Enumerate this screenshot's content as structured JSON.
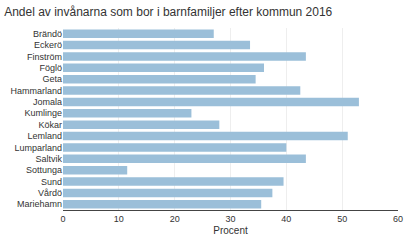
{
  "chart_data": {
    "type": "bar",
    "orientation": "horizontal",
    "title": "Andel av invånarna som bor i barnfamiljer efter kommun 2016",
    "xlabel": "Procent",
    "categories": [
      "Brändö",
      "Eckerö",
      "Finström",
      "Föglö",
      "Geta",
      "Hammarland",
      "Jomala",
      "Kumlinge",
      "Kökar",
      "Lemland",
      "Lumparland",
      "Saltvik",
      "Sottunga",
      "Sund",
      "Vårdö",
      "Mariehamn"
    ],
    "values": [
      27,
      33.5,
      43.5,
      36,
      34.5,
      42.5,
      53,
      23,
      28,
      51,
      40,
      43.5,
      11.5,
      39.5,
      37.5,
      35.5
    ],
    "color": "#9bbfd9",
    "xlim": [
      0,
      60
    ],
    "xticks": [
      0,
      10,
      20,
      30,
      40,
      50,
      60
    ],
    "grid": true
  }
}
